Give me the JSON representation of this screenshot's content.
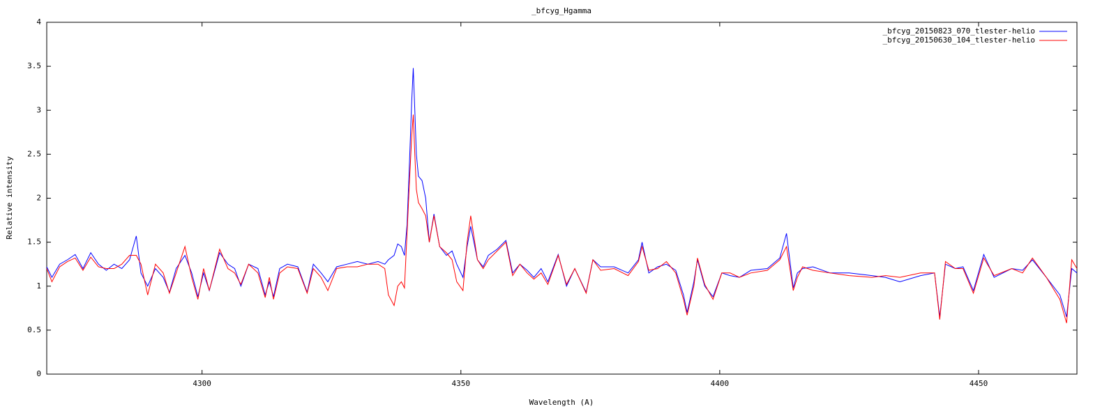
{
  "chart_data": {
    "type": "line",
    "title": "_bfcyg_Hgamma",
    "x_label": "Wavelength (A)",
    "y_label": "Relative intensity",
    "xlim": [
      4270,
      4469
    ],
    "ylim": [
      0,
      4
    ],
    "xticks": [
      4300,
      4350,
      4400,
      4450
    ],
    "yticks": [
      0,
      0.5,
      1,
      1.5,
      2,
      2.5,
      3,
      3.5,
      4
    ],
    "grid": false,
    "legend_position": "top-right",
    "x": [
      4270,
      4271,
      4272.5,
      4274,
      4275.5,
      4277,
      4278.5,
      4280,
      4281.5,
      4283,
      4284.5,
      4286,
      4287.3,
      4288.2,
      4289.5,
      4291,
      4292.5,
      4293.7,
      4295,
      4296.7,
      4298,
      4299.2,
      4300.3,
      4301.4,
      4303.4,
      4305,
      4306.3,
      4307.5,
      4309,
      4310.8,
      4312.2,
      4313,
      4313.8,
      4315,
      4316.5,
      4318.5,
      4320.3,
      4321.5,
      4323,
      4324.3,
      4326,
      4328,
      4330,
      4332,
      4334,
      4335.3,
      4336,
      4337.1,
      4337.8,
      4338.5,
      4339.1,
      4339.6,
      4340,
      4340.5,
      4340.8,
      4341.1,
      4341.4,
      4341.8,
      4342.5,
      4343.2,
      4343.9,
      4344.8,
      4345.9,
      4347.2,
      4348.3,
      4349.2,
      4350.4,
      4351.2,
      4351.9,
      4353.2,
      4354.3,
      4355.3,
      4357,
      4358.7,
      4360,
      4361.4,
      4362.8,
      4364.1,
      4365.5,
      4366.8,
      4368.8,
      4370.4,
      4372,
      4374.2,
      4375.5,
      4377,
      4379.6,
      4382.3,
      4384.3,
      4385,
      4386.3,
      4388,
      4389.7,
      4391.5,
      4393,
      4393.7,
      4395,
      4395.7,
      4397.1,
      4398.7,
      4400.4,
      4402,
      4403.8,
      4406,
      4409.2,
      4411.6,
      4412.9,
      4414.2,
      4415,
      4416,
      4418,
      4421.3,
      4425,
      4429.4,
      4432,
      4434.8,
      4438.8,
      4441.5,
      4442.5,
      4443.6,
      4445.5,
      4447,
      4449,
      4451,
      4453,
      4456.4,
      4458.5,
      4460.4,
      4463.1,
      4465.7,
      4467,
      4468,
      4469
    ],
    "series": [
      {
        "name": "_bfcyg_20150823_070_tlester-helio",
        "color": "#0000ff",
        "values": [
          1.22,
          1.1,
          1.25,
          1.3,
          1.36,
          1.2,
          1.38,
          1.25,
          1.18,
          1.25,
          1.2,
          1.3,
          1.57,
          1.15,
          1.0,
          1.2,
          1.1,
          0.93,
          1.2,
          1.35,
          1.15,
          0.88,
          1.15,
          0.95,
          1.38,
          1.25,
          1.2,
          1.0,
          1.25,
          1.2,
          0.9,
          1.05,
          0.88,
          1.2,
          1.25,
          1.22,
          0.93,
          1.25,
          1.15,
          1.05,
          1.22,
          1.25,
          1.28,
          1.25,
          1.28,
          1.25,
          1.3,
          1.35,
          1.48,
          1.45,
          1.35,
          1.7,
          2.3,
          3.1,
          3.48,
          3.0,
          2.5,
          2.25,
          2.2,
          2.0,
          1.5,
          1.82,
          1.45,
          1.35,
          1.4,
          1.25,
          1.1,
          1.45,
          1.68,
          1.3,
          1.22,
          1.35,
          1.42,
          1.52,
          1.15,
          1.25,
          1.18,
          1.1,
          1.2,
          1.05,
          1.36,
          1.0,
          1.2,
          0.93,
          1.3,
          1.22,
          1.22,
          1.15,
          1.3,
          1.5,
          1.15,
          1.22,
          1.25,
          1.18,
          0.9,
          0.7,
          1.05,
          1.3,
          1.0,
          0.88,
          1.15,
          1.12,
          1.1,
          1.18,
          1.2,
          1.32,
          1.6,
          0.98,
          1.15,
          1.2,
          1.22,
          1.15,
          1.15,
          1.12,
          1.1,
          1.05,
          1.12,
          1.15,
          0.65,
          1.25,
          1.2,
          1.22,
          0.95,
          1.36,
          1.1,
          1.2,
          1.18,
          1.3,
          1.1,
          0.9,
          0.65,
          1.2,
          1.15
        ]
      },
      {
        "name": "_bfcyg_20150630_104_tlester-helio",
        "color": "#ff0000",
        "values": [
          1.2,
          1.05,
          1.22,
          1.28,
          1.32,
          1.18,
          1.33,
          1.22,
          1.2,
          1.2,
          1.25,
          1.35,
          1.35,
          1.25,
          0.9,
          1.25,
          1.15,
          0.92,
          1.15,
          1.45,
          1.1,
          0.85,
          1.2,
          0.95,
          1.42,
          1.2,
          1.15,
          1.02,
          1.25,
          1.15,
          0.87,
          1.1,
          0.85,
          1.15,
          1.22,
          1.2,
          0.92,
          1.2,
          1.1,
          0.95,
          1.2,
          1.22,
          1.22,
          1.25,
          1.25,
          1.2,
          0.9,
          0.78,
          1.0,
          1.05,
          0.98,
          1.6,
          2.1,
          2.7,
          2.95,
          2.5,
          2.1,
          1.95,
          1.88,
          1.8,
          1.5,
          1.8,
          1.45,
          1.38,
          1.3,
          1.05,
          0.95,
          1.5,
          1.8,
          1.3,
          1.2,
          1.3,
          1.4,
          1.5,
          1.12,
          1.25,
          1.15,
          1.08,
          1.15,
          1.02,
          1.35,
          1.02,
          1.2,
          0.92,
          1.3,
          1.18,
          1.2,
          1.12,
          1.28,
          1.45,
          1.18,
          1.2,
          1.28,
          1.15,
          0.85,
          0.67,
          1.0,
          1.32,
          1.02,
          0.85,
          1.15,
          1.15,
          1.1,
          1.15,
          1.18,
          1.3,
          1.45,
          0.95,
          1.1,
          1.22,
          1.18,
          1.15,
          1.12,
          1.1,
          1.12,
          1.1,
          1.15,
          1.15,
          0.62,
          1.28,
          1.2,
          1.2,
          0.92,
          1.32,
          1.12,
          1.2,
          1.15,
          1.32,
          1.1,
          0.85,
          0.58,
          1.3,
          1.2
        ]
      }
    ]
  }
}
